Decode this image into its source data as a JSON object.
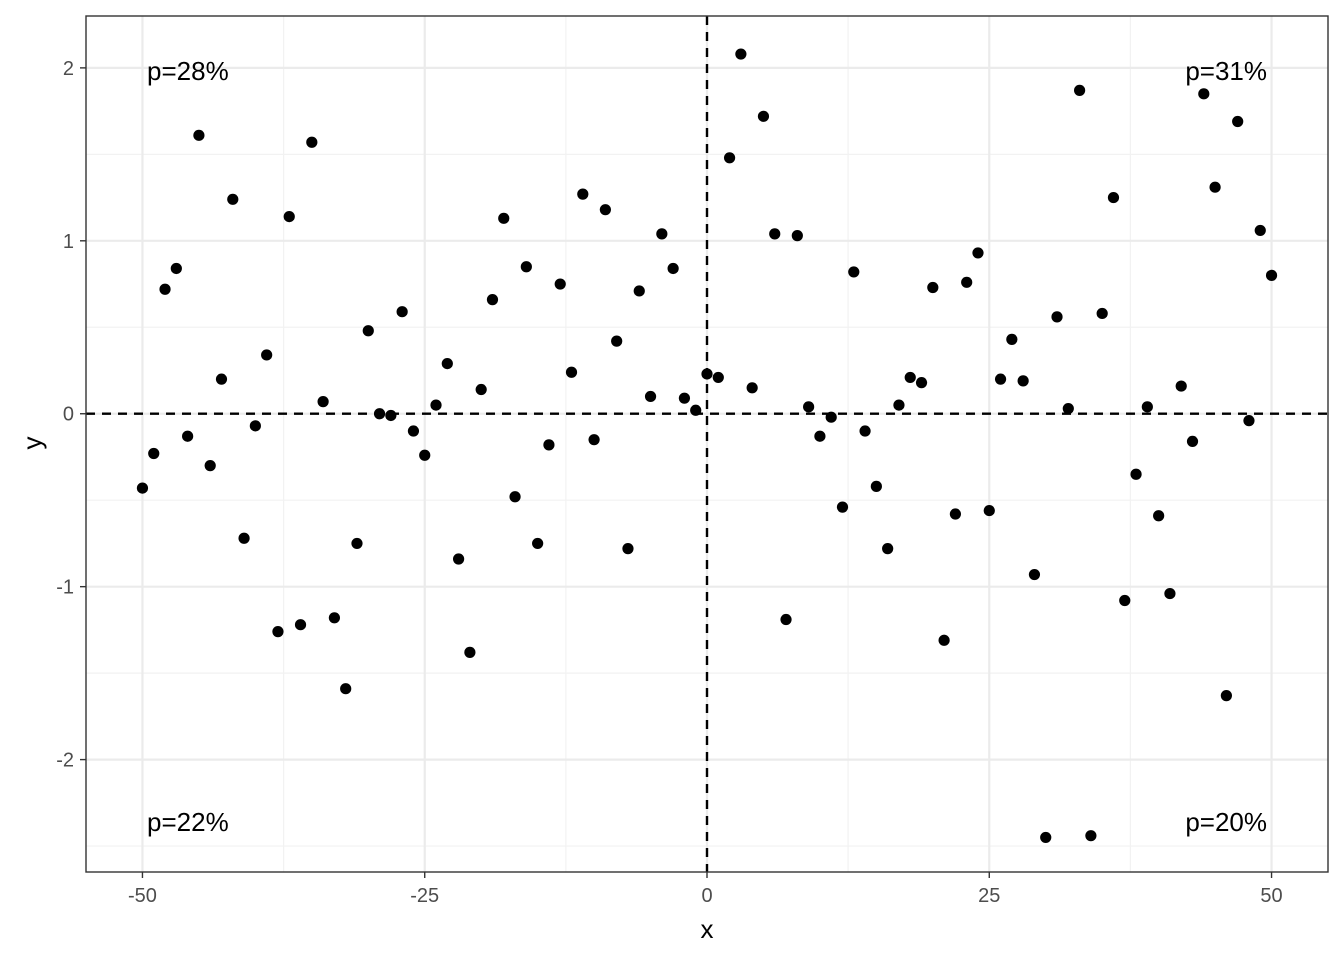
{
  "chart_data": {
    "type": "scatter",
    "xlabel": "x",
    "ylabel": "y",
    "xlim": [
      -55,
      55
    ],
    "ylim": [
      -2.65,
      2.3
    ],
    "x_ticks": [
      -50,
      -25,
      0,
      25,
      50
    ],
    "y_ticks": [
      -2,
      -1,
      0,
      1,
      2
    ],
    "x_tick_labels": [
      "-50",
      "-25",
      "0",
      "25",
      "50"
    ],
    "y_tick_labels": [
      "-2",
      "-1",
      "0",
      "1",
      "2"
    ],
    "grid": true,
    "reference_lines": {
      "x": 0,
      "y": 0,
      "style": "dashed"
    },
    "annotations": [
      {
        "text": "p=28%",
        "quadrant": "top-left"
      },
      {
        "text": "p=31%",
        "quadrant": "top-right"
      },
      {
        "text": "p=22%",
        "quadrant": "bottom-left"
      },
      {
        "text": "p=20%",
        "quadrant": "bottom-right"
      }
    ],
    "point_color": "#000000",
    "x": [
      -50,
      -49,
      -48,
      -47,
      -46,
      -45,
      -44,
      -43,
      -42,
      -41,
      -40,
      -39,
      -38,
      -37,
      -36,
      -35,
      -34,
      -33,
      -32,
      -31,
      -30,
      -29,
      -28,
      -27,
      -26,
      -25,
      -24,
      -23,
      -22,
      -21,
      -20,
      -19,
      -18,
      -17,
      -16,
      -15,
      -14,
      -13,
      -12,
      -11,
      -10,
      -9,
      -8,
      -7,
      -6,
      -5,
      -4,
      -3,
      -2,
      -1,
      0,
      1,
      2,
      3,
      4,
      5,
      6,
      7,
      8,
      9,
      10,
      11,
      12,
      13,
      14,
      15,
      16,
      17,
      18,
      19,
      20,
      21,
      22,
      23,
      24,
      25,
      26,
      27,
      28,
      29,
      30,
      31,
      32,
      33,
      34,
      35,
      36,
      37,
      38,
      39,
      40,
      41,
      42,
      43,
      44,
      45,
      46,
      47,
      48,
      49,
      50
    ],
    "y": [
      -0.43,
      -0.23,
      0.72,
      0.84,
      -0.13,
      1.61,
      -0.3,
      0.2,
      1.24,
      -0.72,
      -0.07,
      0.34,
      -1.26,
      1.14,
      -1.22,
      1.57,
      0.07,
      -1.18,
      -1.59,
      -0.75,
      0.48,
      0.0,
      -0.01,
      0.59,
      -0.1,
      -0.24,
      0.05,
      0.29,
      -0.84,
      -1.38,
      0.14,
      0.66,
      1.13,
      -0.48,
      0.85,
      -0.75,
      -0.18,
      0.75,
      0.24,
      1.27,
      -0.15,
      1.18,
      0.42,
      -0.78,
      0.71,
      0.1,
      1.04,
      0.84,
      0.09,
      0.02,
      0.23,
      0.21,
      1.48,
      2.08,
      0.15,
      1.72,
      1.04,
      -1.19,
      1.03,
      0.04,
      -0.13,
      -0.02,
      -0.54,
      0.82,
      -0.1,
      -0.42,
      -0.78,
      0.05,
      0.21,
      0.18,
      0.73,
      -1.31,
      -0.58,
      0.76,
      0.93,
      -0.56,
      0.2,
      0.43,
      0.19,
      -0.93,
      -2.45,
      0.56,
      0.03,
      1.87,
      -2.44,
      0.58,
      1.25,
      -1.08,
      -0.35,
      0.04,
      -0.59,
      -1.04,
      0.16,
      -0.16,
      1.85,
      1.31,
      -1.63,
      1.69,
      -0.04,
      1.06,
      0.8
    ]
  }
}
